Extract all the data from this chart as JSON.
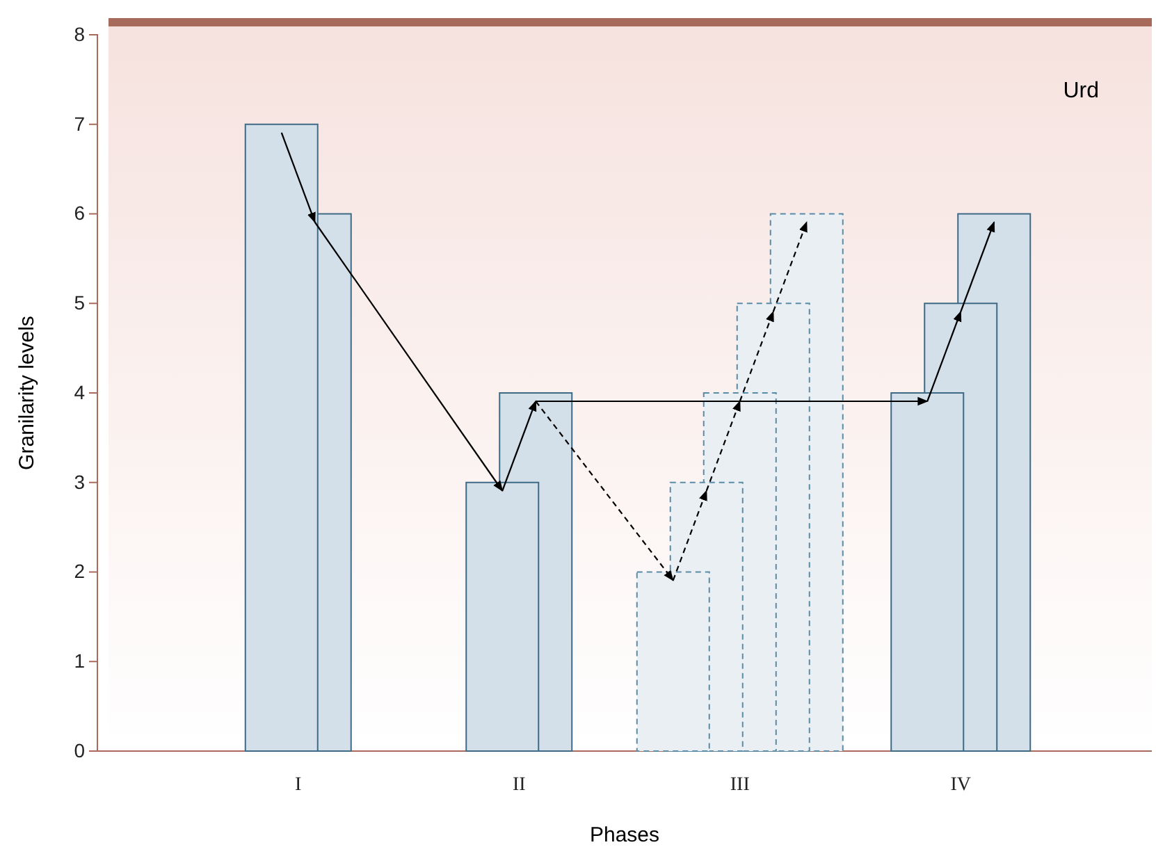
{
  "chart_data": {
    "type": "bar",
    "xlabel": "Phases",
    "ylabel": "Granilarity levels",
    "categories": [
      "I",
      "II",
      "III",
      "IV"
    ],
    "ylim": [
      0,
      8
    ],
    "yticks": [
      0,
      1,
      2,
      3,
      4,
      5,
      6,
      7,
      8
    ],
    "annotations": [
      "Urd"
    ],
    "series": [
      {
        "color": "#d3e0ea",
        "line_style": "solid",
        "values": [
          7,
          3,
          null,
          4
        ]
      },
      {
        "color": "#d3e0ea",
        "line_style": "solid",
        "values": [
          6,
          4,
          null,
          5
        ]
      },
      {
        "color": "#d3e0ea",
        "line_style": "solid",
        "values": [
          null,
          null,
          null,
          6
        ]
      },
      {
        "color": "#eaeff4",
        "line_style": "dashed",
        "values": [
          null,
          null,
          2,
          null
        ]
      },
      {
        "color": "#eaeff4",
        "line_style": "dashed",
        "values": [
          null,
          null,
          3,
          null
        ]
      },
      {
        "color": "#eaeff4",
        "line_style": "dashed",
        "values": [
          null,
          null,
          4,
          null
        ]
      },
      {
        "color": "#eaeff4",
        "line_style": "dashed",
        "values": [
          null,
          null,
          5,
          null
        ]
      },
      {
        "color": "#eaeff4",
        "line_style": "dashed",
        "values": [
          null,
          null,
          6,
          null
        ]
      }
    ]
  }
}
